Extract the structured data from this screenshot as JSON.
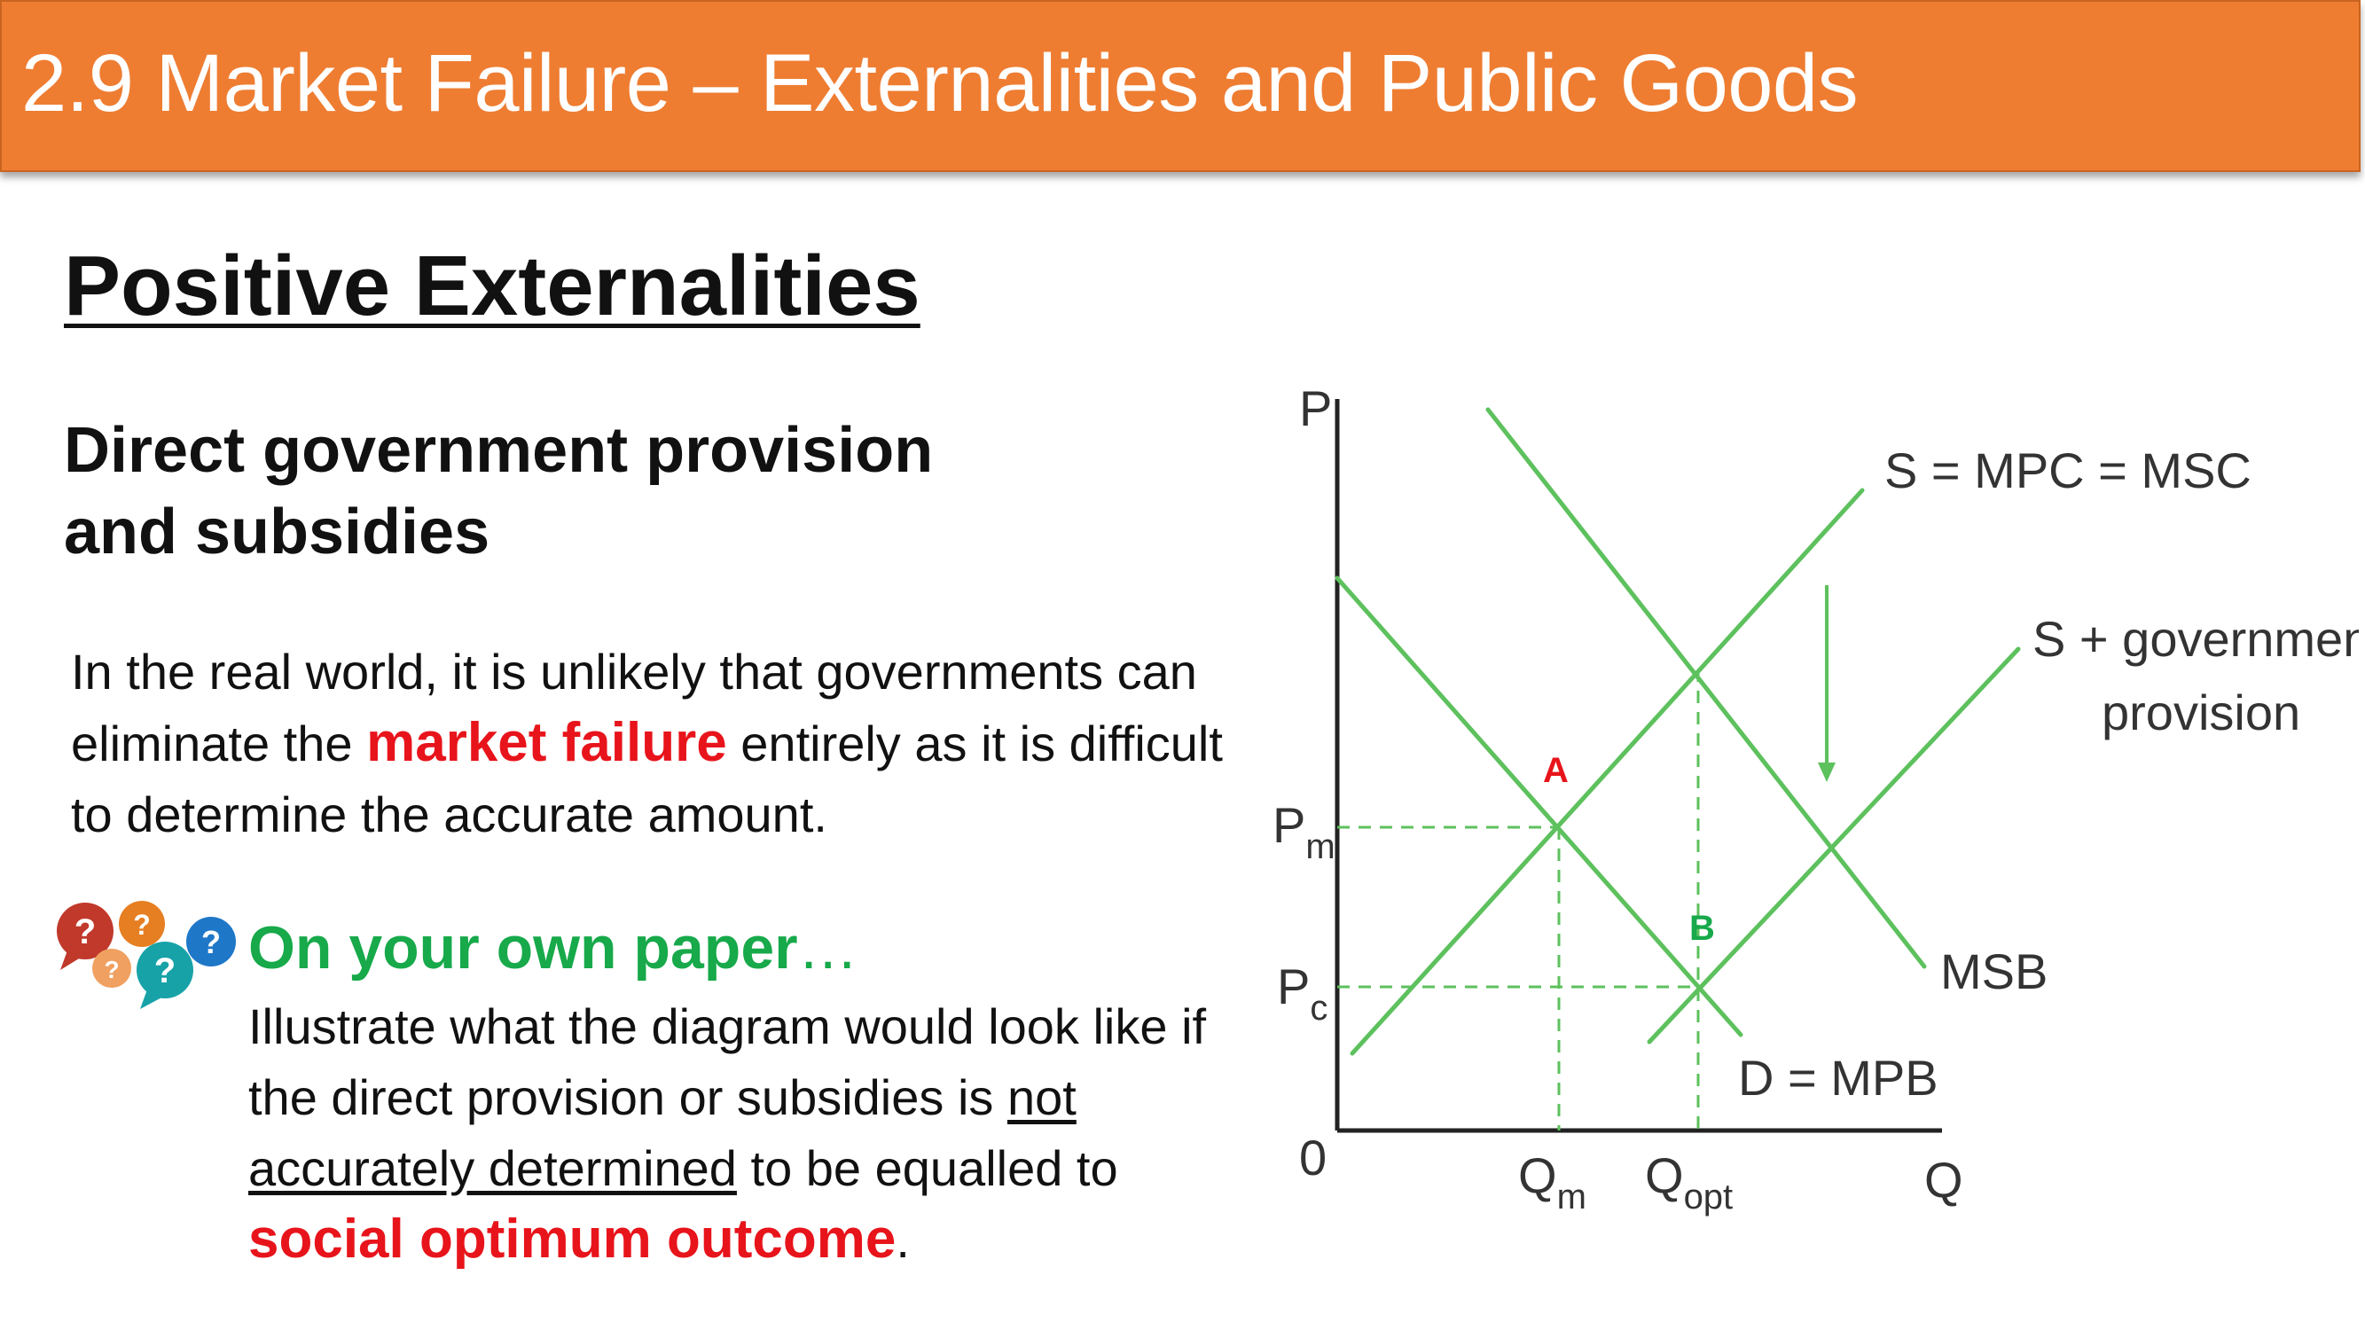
{
  "header": {
    "title": "2.9 Market Failure – Externalities and Public Goods"
  },
  "section_title": "Positive Externalities",
  "subtitle": {
    "line1": "Direct government provision",
    "line2": "and subsidies"
  },
  "body": {
    "part1": "In the real world, it is unlikely that governments can eliminate the ",
    "highlight": "market failure",
    "part2": " entirely as it is difficult to determine the accurate amount."
  },
  "task": {
    "heading": "On your own paper",
    "ellipsis": "…",
    "part1": "Illustrate what the diagram would look like if the direct provision or subsidies is ",
    "underlined": "not accurately determined",
    "part2": " to be equalled to ",
    "highlight": "social optimum outcome",
    "end": "."
  },
  "bubbles": {
    "glyph": "?",
    "colors": [
      "#c0392b",
      "#e67e22",
      "#f0a060",
      "#17a2a8",
      "#1f77c8"
    ],
    "icon": "question-bubbles-icon"
  },
  "diagram": {
    "axis_y": "P",
    "axis_x": "Q",
    "origin": "0",
    "price_m": {
      "main": "P",
      "sub": "m"
    },
    "price_c": {
      "main": "P",
      "sub": "c"
    },
    "qty_m": {
      "main": "Q",
      "sub": "m"
    },
    "qty_opt": {
      "main": "Q",
      "sub": "opt"
    },
    "curve_s": "S = MPC = MSC",
    "curve_s_gov_1": "S + government",
    "curve_s_gov_2": "provision",
    "curve_msb": "MSB",
    "curve_d": "D = MPB",
    "point_a": "A",
    "point_b": "B",
    "line_color": "#5dc15d",
    "point_a_color": "#e8141b",
    "point_b_color": "#17a94a"
  }
}
